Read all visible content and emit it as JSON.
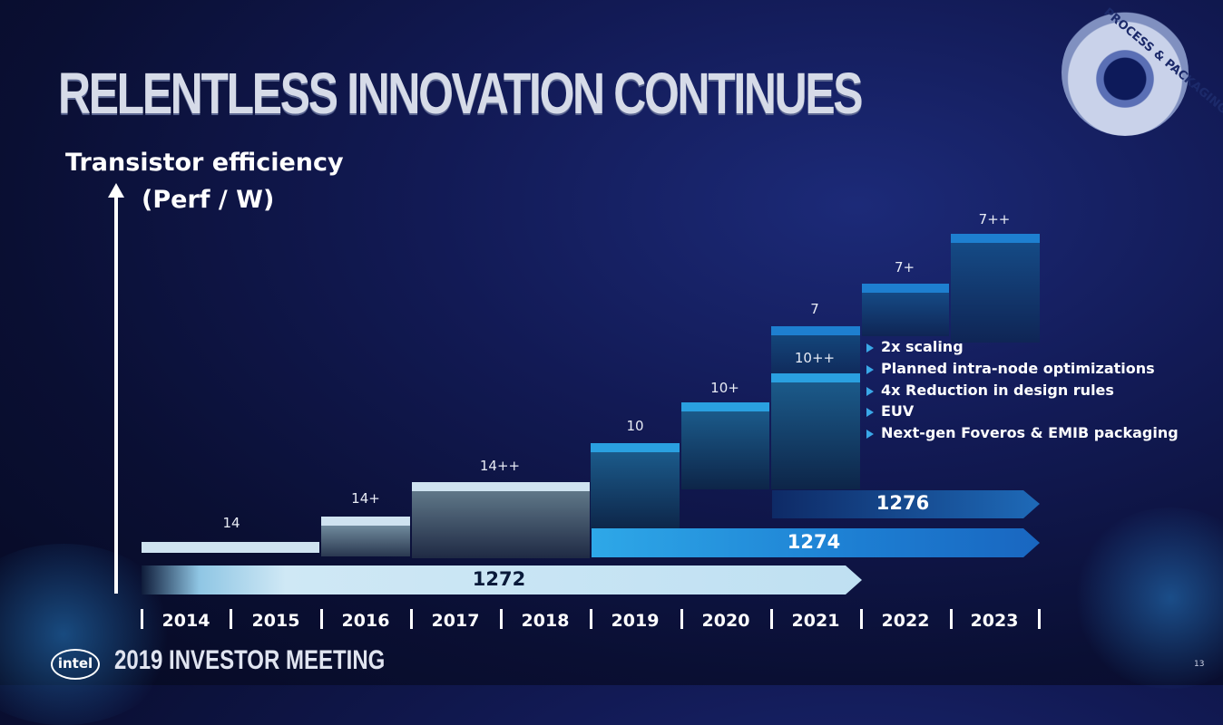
{
  "title": "RELENTLESS INNOVATION CONTINUES",
  "seal": {
    "text": "PROCESS & PACKAGING"
  },
  "y_axis": {
    "label_line1": "Transistor efficiency",
    "label_line2": "(Perf / W)"
  },
  "years": [
    "2014",
    "2015",
    "2016",
    "2017",
    "2018",
    "2019",
    "2020",
    "2021",
    "2022",
    "2023"
  ],
  "nodes": [
    "14",
    "14+",
    "14++",
    "10",
    "10+",
    "10++",
    "7",
    "7+",
    "7++"
  ],
  "roadmaps": {
    "r1272": "1272",
    "r1274": "1274",
    "r1276": "1276"
  },
  "features": [
    "2x scaling",
    "Planned intra-node optimizations",
    "4x Reduction in design rules",
    "EUV",
    "Next-gen Foveros & EMIB packaging"
  ],
  "footer": {
    "logo": "intel",
    "event": "2019 INVESTOR MEETING",
    "page": "13"
  },
  "colors": {
    "accent": "#1e7fd0",
    "light": "#cfe3f0",
    "dark_navy": "#0a0f33"
  }
}
